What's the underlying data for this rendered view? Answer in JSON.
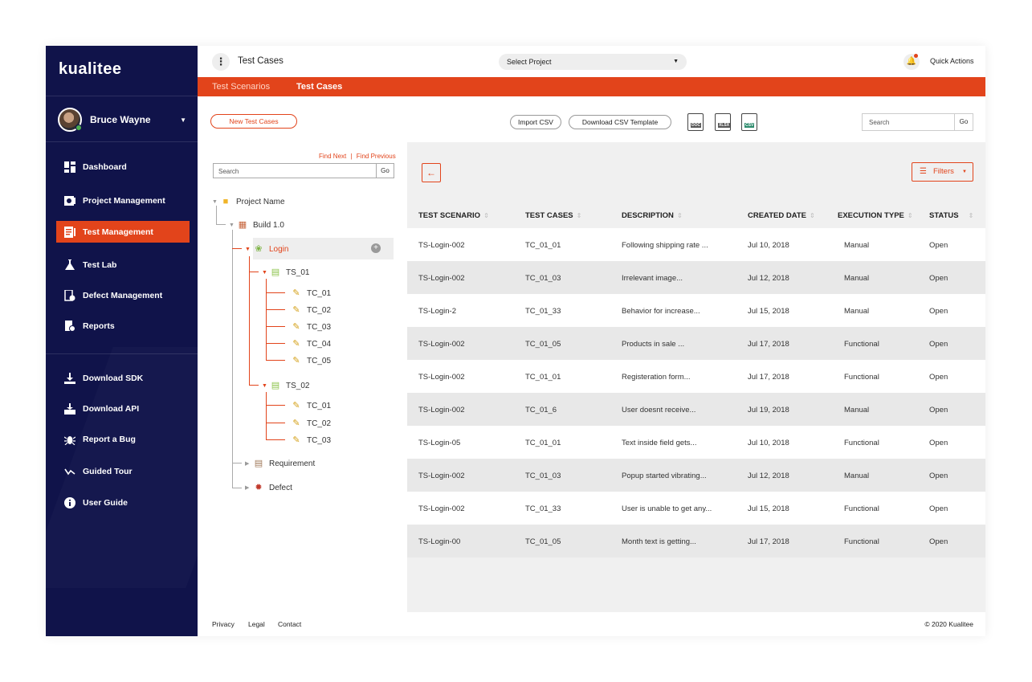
{
  "brand": {
    "logo_text": "kualitee"
  },
  "user": {
    "name": "Bruce Wayne"
  },
  "nav": {
    "main": [
      {
        "label": "Dashboard",
        "icon": "dashboard-icon"
      },
      {
        "label": "Project Management",
        "icon": "project-management-icon"
      },
      {
        "label": "Test Management",
        "icon": "test-management-icon",
        "active": true
      },
      {
        "label": "Test Lab",
        "icon": "flask-icon"
      },
      {
        "label": "Defect Management",
        "icon": "defect-icon"
      },
      {
        "label": "Reports",
        "icon": "reports-icon"
      }
    ],
    "secondary": [
      {
        "label": "Download SDK",
        "icon": "download-icon"
      },
      {
        "label": "Download API",
        "icon": "download-api-icon"
      },
      {
        "label": "Report a Bug",
        "icon": "bug-icon"
      },
      {
        "label": "Guided Tour",
        "icon": "tour-icon"
      },
      {
        "label": "User Guide",
        "icon": "info-icon"
      }
    ]
  },
  "topbar": {
    "title": "Test Cases",
    "select_project": "Select Project",
    "quick_actions": "Quick Actions"
  },
  "tabs": [
    {
      "label": "Test Scenarios",
      "active": false
    },
    {
      "label": "Test Cases",
      "active": true
    }
  ],
  "toolbar": {
    "new_test_cases": "New Test Cases",
    "import_csv": "Import CSV",
    "download_csv_template": "Download CSV Template",
    "file_icons": [
      "DOC",
      "XLSX",
      "CSV"
    ],
    "search_placeholder": "Search",
    "go": "Go"
  },
  "tree": {
    "find_next": "Find Next",
    "find_sep": "|",
    "find_previous": "Find Previous",
    "search_placeholder": "Search",
    "go": "Go",
    "project": "Project Name",
    "build": "Build 1.0",
    "module": "Login",
    "ts1": "TS_01",
    "ts1_cases": [
      "TC_01",
      "TC_02",
      "TC_03",
      "TC_04",
      "TC_05"
    ],
    "ts2": "TS_02",
    "ts2_cases": [
      "TC_01",
      "TC_02",
      "TC_03"
    ],
    "requirement": "Requirement",
    "defect": "Defect"
  },
  "table": {
    "headers": [
      "TEST SCENARIO",
      "TEST CASES",
      "DESCRIPTION",
      "CREATED DATE",
      "EXECUTION TYPE",
      "STATUS"
    ],
    "rows": [
      [
        "TS-Login-002",
        "TC_01_01",
        "Following shipping rate ...",
        "Jul 10, 2018",
        "Manual",
        "Open"
      ],
      [
        "TS-Login-002",
        "TC_01_03",
        "Irrelevant image...",
        "Jul 12, 2018",
        "Manual",
        "Open"
      ],
      [
        "TS-Login-2",
        "TC_01_33",
        "Behavior for increase...",
        "Jul 15, 2018",
        "Manual",
        "Open"
      ],
      [
        "TS-Login-002",
        "TC_01_05",
        "Products in sale ...",
        "Jul 17, 2018",
        "Functional",
        "Open"
      ],
      [
        "TS-Login-002",
        "TC_01_01",
        "Registeration form...",
        "Jul 17, 2018",
        "Functional",
        "Open"
      ],
      [
        "TS-Login-002",
        "TC_01_6",
        "User doesnt receive...",
        "Jul 19, 2018",
        "Manual",
        "Open"
      ],
      [
        "TS-Login-05",
        "TC_01_01",
        "Text inside field gets...",
        "Jul 10, 2018",
        "Functional",
        "Open"
      ],
      [
        "TS-Login-002",
        "TC_01_03",
        "Popup started vibrating...",
        "Jul 12, 2018",
        "Manual",
        "Open"
      ],
      [
        "TS-Login-002",
        "TC_01_33",
        "User is unable to get any...",
        "Jul 15, 2018",
        "Functional",
        "Open"
      ],
      [
        "TS-Login-00",
        "TC_01_05",
        "Month text is getting...",
        "Jul 17, 2018",
        "Functional",
        "Open"
      ]
    ],
    "filters_label": "Filters"
  },
  "footer": {
    "links": [
      "Privacy",
      "Legal",
      "Contact"
    ],
    "copyright": "© 2020 Kualitee"
  },
  "colors": {
    "sidebar": "#10134a",
    "accent": "#e2441b"
  }
}
